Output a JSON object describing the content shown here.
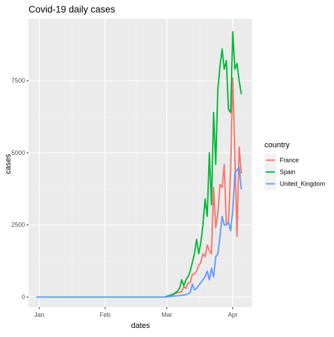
{
  "chart_data": {
    "type": "line",
    "title": "Covid-19 daily cases",
    "xlabel": "dates",
    "ylabel": "cases",
    "x_ticks": [
      "Jan",
      "Feb",
      "Mar",
      "Apr"
    ],
    "y_ticks": [
      0,
      2500,
      5000,
      7500
    ],
    "ylim": [
      -350,
      9650
    ],
    "xlim": [
      "2019-12-27",
      "2020-04-10"
    ],
    "legend_title": "country",
    "legend_position": "right",
    "grid": true,
    "series": [
      {
        "name": "France",
        "color": "#F8766D",
        "points": [
          [
            "2019-12-31",
            0
          ],
          [
            "2020-02-29",
            0
          ],
          [
            "2020-03-02",
            30
          ],
          [
            "2020-03-04",
            80
          ],
          [
            "2020-03-06",
            150
          ],
          [
            "2020-03-08",
            180
          ],
          [
            "2020-03-09",
            380
          ],
          [
            "2020-03-10",
            300
          ],
          [
            "2020-03-11",
            480
          ],
          [
            "2020-03-12",
            500
          ],
          [
            "2020-03-13",
            780
          ],
          [
            "2020-03-14",
            800
          ],
          [
            "2020-03-15",
            900
          ],
          [
            "2020-03-16",
            1100
          ],
          [
            "2020-03-17",
            1200
          ],
          [
            "2020-03-18",
            1500
          ],
          [
            "2020-03-19",
            1400
          ],
          [
            "2020-03-20",
            1800
          ],
          [
            "2020-03-21",
            1600
          ],
          [
            "2020-03-22",
            1500
          ],
          [
            "2020-03-23",
            3800
          ],
          [
            "2020-03-24",
            2400
          ],
          [
            "2020-03-25",
            2900
          ],
          [
            "2020-03-26",
            3900
          ],
          [
            "2020-03-27",
            3800
          ],
          [
            "2020-03-28",
            4600
          ],
          [
            "2020-03-29",
            2500
          ],
          [
            "2020-03-30",
            2600
          ],
          [
            "2020-03-31",
            4400
          ],
          [
            "2020-04-01",
            7600
          ],
          [
            "2020-04-02",
            4900
          ],
          [
            "2020-04-03",
            2100
          ],
          [
            "2020-04-04",
            5200
          ],
          [
            "2020-04-05",
            4300
          ]
        ]
      },
      {
        "name": "Spain",
        "color": "#00BA38",
        "points": [
          [
            "2019-12-31",
            0
          ],
          [
            "2020-02-29",
            0
          ],
          [
            "2020-03-02",
            50
          ],
          [
            "2020-03-04",
            100
          ],
          [
            "2020-03-06",
            200
          ],
          [
            "2020-03-07",
            300
          ],
          [
            "2020-03-08",
            600
          ],
          [
            "2020-03-09",
            400
          ],
          [
            "2020-03-10",
            600
          ],
          [
            "2020-03-11",
            700
          ],
          [
            "2020-03-12",
            900
          ],
          [
            "2020-03-13",
            1200
          ],
          [
            "2020-03-14",
            1500
          ],
          [
            "2020-03-15",
            2000
          ],
          [
            "2020-03-16",
            1500
          ],
          [
            "2020-03-17",
            1900
          ],
          [
            "2020-03-18",
            2500
          ],
          [
            "2020-03-19",
            3400
          ],
          [
            "2020-03-20",
            2800
          ],
          [
            "2020-03-21",
            5000
          ],
          [
            "2020-03-22",
            3200
          ],
          [
            "2020-03-23",
            6400
          ],
          [
            "2020-03-24",
            4600
          ],
          [
            "2020-03-25",
            7200
          ],
          [
            "2020-03-26",
            8000
          ],
          [
            "2020-03-27",
            8600
          ],
          [
            "2020-03-28",
            7900
          ],
          [
            "2020-03-29",
            8200
          ],
          [
            "2020-03-30",
            6500
          ],
          [
            "2020-03-31",
            6400
          ],
          [
            "2020-04-01",
            9200
          ],
          [
            "2020-04-02",
            7900
          ],
          [
            "2020-04-03",
            8100
          ],
          [
            "2020-04-04",
            7500
          ],
          [
            "2020-04-05",
            7050
          ]
        ]
      },
      {
        "name": "United_Kingdom",
        "color": "#619CFF",
        "points": [
          [
            "2019-12-31",
            0
          ],
          [
            "2020-02-29",
            0
          ],
          [
            "2020-03-02",
            10
          ],
          [
            "2020-03-04",
            30
          ],
          [
            "2020-03-06",
            40
          ],
          [
            "2020-03-08",
            60
          ],
          [
            "2020-03-10",
            80
          ],
          [
            "2020-03-12",
            150
          ],
          [
            "2020-03-13",
            450
          ],
          [
            "2020-03-14",
            250
          ],
          [
            "2020-03-15",
            300
          ],
          [
            "2020-03-16",
            400
          ],
          [
            "2020-03-17",
            500
          ],
          [
            "2020-03-18",
            600
          ],
          [
            "2020-03-19",
            700
          ],
          [
            "2020-03-20",
            900
          ],
          [
            "2020-03-21",
            600
          ],
          [
            "2020-03-22",
            1000
          ],
          [
            "2020-03-23",
            700
          ],
          [
            "2020-03-24",
            1400
          ],
          [
            "2020-03-25",
            1500
          ],
          [
            "2020-03-26",
            2100
          ],
          [
            "2020-03-27",
            2800
          ],
          [
            "2020-03-28",
            2500
          ],
          [
            "2020-03-29",
            2500
          ],
          [
            "2020-03-30",
            2600
          ],
          [
            "2020-03-31",
            2300
          ],
          [
            "2020-04-01",
            3000
          ],
          [
            "2020-04-02",
            4300
          ],
          [
            "2020-04-03",
            4400
          ],
          [
            "2020-04-04",
            4500
          ],
          [
            "2020-04-05",
            3750
          ]
        ]
      }
    ]
  }
}
